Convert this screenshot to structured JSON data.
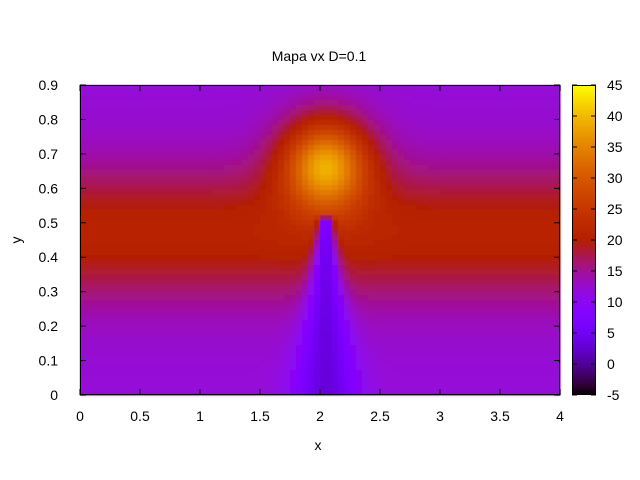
{
  "chart_data": {
    "type": "heatmap",
    "title": "Mapa vx D=0.1",
    "xlabel": "x",
    "ylabel": "y",
    "xlim": [
      0,
      4
    ],
    "ylim": [
      0,
      0.9
    ],
    "x_ticks": [
      "0",
      "0.5",
      "1",
      "1.5",
      "2",
      "2.5",
      "3",
      "3.5",
      "4"
    ],
    "y_ticks": [
      "0",
      "0.1",
      "0.2",
      "0.3",
      "0.4",
      "0.5",
      "0.6",
      "0.7",
      "0.8",
      "0.9"
    ],
    "colorbar": {
      "range": [
        -5,
        45
      ],
      "ticks": [
        "-5",
        "0",
        "5",
        "10",
        "15",
        "20",
        "25",
        "30",
        "35",
        "40",
        "45"
      ],
      "palette": "gnuplot (black-purple-red-yellow)"
    },
    "field_features": {
      "background_value": 21,
      "wall_value": 12,
      "hot_spot": {
        "x": 2.05,
        "y": 0.67,
        "peak_value": 45
      },
      "obstacle_wake": {
        "x": 2.05,
        "y_top": 0.52,
        "min_value": 3
      }
    }
  }
}
